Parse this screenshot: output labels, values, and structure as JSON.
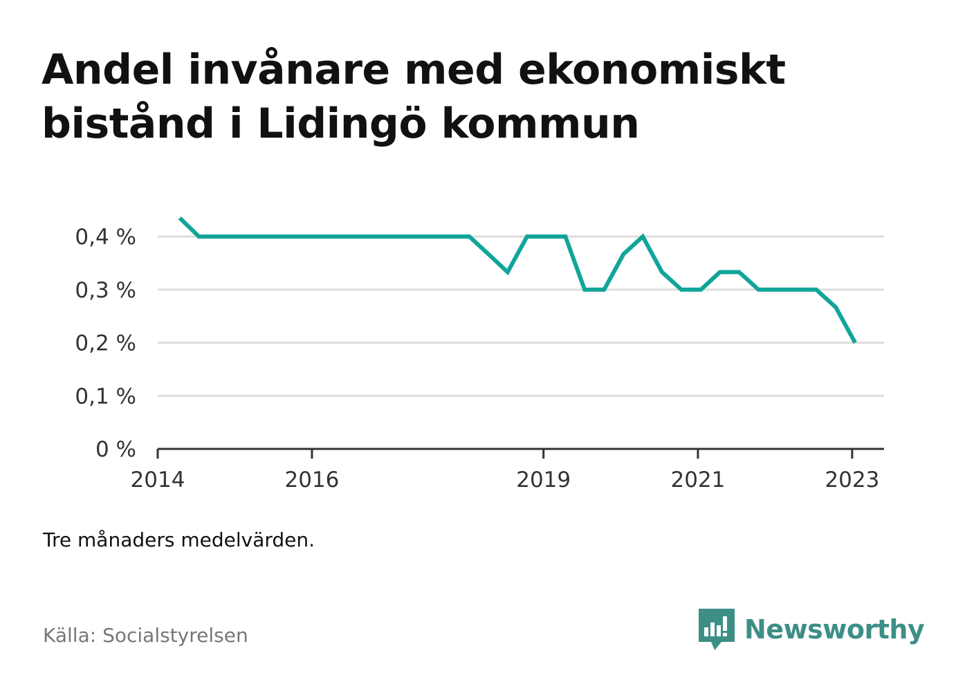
{
  "title": "Andel invånare med ekonomiskt bistånd i Lidingö kommun",
  "note": "Tre månaders medelvärden.",
  "source": "Källa: Socialstyrelsen",
  "brand": {
    "name": "Newsworthy",
    "icon": "newsworthy-logo-icon"
  },
  "colors": {
    "line": "#11a59a",
    "grid": "#dddddd",
    "axis": "#333333",
    "brand": "#3d8f86"
  },
  "chart_data": {
    "type": "line",
    "title": "Andel invånare med ekonomiskt bistånd i Lidingö kommun",
    "xlabel": "",
    "ylabel": "",
    "xlim": [
      "2014-01-01",
      "2023-06-01"
    ],
    "ylim": [
      0,
      0.4
    ],
    "grid": true,
    "y_ticks": [
      {
        "value": 0,
        "label": "0 %"
      },
      {
        "value": 0.1,
        "label": "0,1 %"
      },
      {
        "value": 0.2,
        "label": "0,2 %"
      },
      {
        "value": 0.3,
        "label": "0,3 %"
      },
      {
        "value": 0.4,
        "label": "0,4 %"
      }
    ],
    "x_ticks": [
      {
        "value": "2014-01-01",
        "label": "2014"
      },
      {
        "value": "2016-01-01",
        "label": "2016"
      },
      {
        "value": "2019-01-01",
        "label": "2019"
      },
      {
        "value": "2021-01-01",
        "label": "2021"
      },
      {
        "value": "2023-01-01",
        "label": "2023"
      }
    ],
    "series": [
      {
        "x": [
          "2014-04-15",
          "2014-07-15",
          "2014-10-15",
          "2015-01-15",
          "2015-04-15",
          "2015-07-15",
          "2015-10-15",
          "2016-01-15",
          "2016-04-15",
          "2016-07-15",
          "2016-10-15",
          "2017-01-15",
          "2017-04-15",
          "2017-07-15",
          "2017-10-15",
          "2018-01-15",
          "2018-04-15",
          "2018-07-15",
          "2018-10-15",
          "2019-01-15",
          "2019-04-15",
          "2019-07-15",
          "2019-10-15",
          "2020-01-15",
          "2020-04-15",
          "2020-07-15",
          "2020-10-15",
          "2021-01-15",
          "2021-04-15",
          "2021-07-15",
          "2021-10-15",
          "2022-01-15",
          "2022-04-15",
          "2022-07-15",
          "2022-10-15",
          "2023-01-15"
        ],
        "values": [
          0.435,
          0.4,
          0.4,
          0.4,
          0.4,
          0.4,
          0.4,
          0.4,
          0.4,
          0.4,
          0.4,
          0.4,
          0.4,
          0.4,
          0.4,
          0.4,
          0.367,
          0.333,
          0.4,
          0.4,
          0.4,
          0.3,
          0.3,
          0.367,
          0.4,
          0.333,
          0.3,
          0.3,
          0.333,
          0.333,
          0.3,
          0.3,
          0.3,
          0.3,
          0.267,
          0.2
        ]
      }
    ]
  }
}
